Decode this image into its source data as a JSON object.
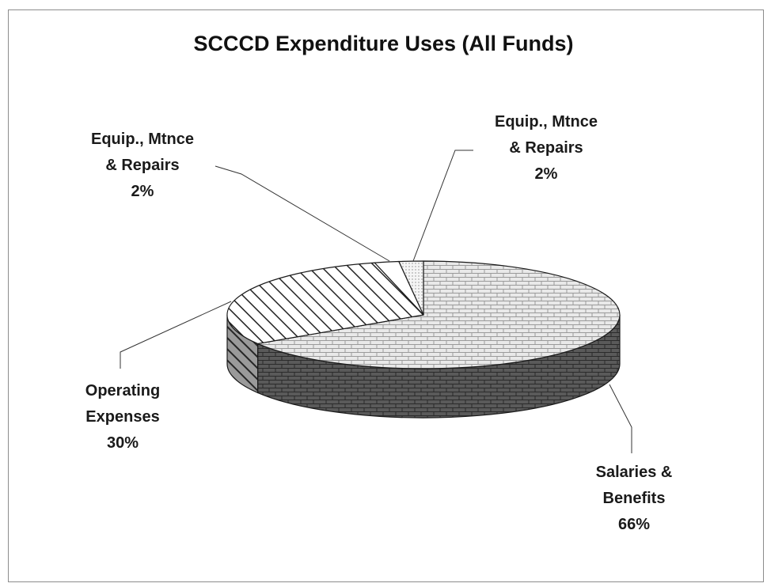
{
  "chart_data": {
    "type": "pie",
    "title": "SCCCD Expenditure Uses (All Funds)",
    "three_d": true,
    "slices": [
      {
        "name_lines": [
          "Salaries &",
          "Benefits"
        ],
        "percent_label": "66%",
        "value": 66,
        "pattern": "brick",
        "color": "#e6e6e6",
        "side_color": "#595959"
      },
      {
        "name_lines": [
          "Operating",
          "Expenses"
        ],
        "percent_label": "30%",
        "value": 30,
        "pattern": "diagonal",
        "color": "#ffffff",
        "side_color": "#4a4a4a"
      },
      {
        "name_lines": [
          "Equip., Mtnce",
          "& Repairs"
        ],
        "percent_label": "2%",
        "value": 2,
        "pattern": "plain",
        "color": "#ffffff",
        "side_color": "#d9d9d9"
      },
      {
        "name_lines": [
          "Equip., Mtnce",
          "& Repairs"
        ],
        "percent_label": "2%",
        "value": 2,
        "pattern": "dots",
        "color": "#f2f2f2",
        "side_color": "#bfbfbf"
      }
    ]
  }
}
